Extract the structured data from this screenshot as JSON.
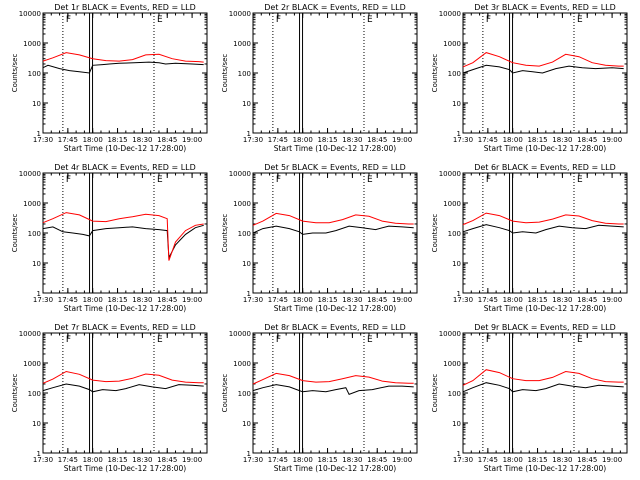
{
  "figure": {
    "xlabel": "Start Time (10-Dec-12 17:28:00)",
    "ylabel": "Counts/sec",
    "x_tick_labels": [
      "17:30",
      "17:45",
      "18:00",
      "18:15",
      "18:30",
      "18:45",
      "19:00"
    ],
    "y_tick_labels": [
      "1",
      "10",
      "100",
      "1000",
      "10000"
    ],
    "colors": {
      "events": "#000000",
      "lld": "#ff0000"
    }
  },
  "chart_data": [
    {
      "type": "line",
      "title": "Det 1r  BLACK = Events, RED = LLD",
      "markers": {
        "dotted": [
          "17:42",
          "18:37"
        ],
        "solid_double": [
          "17:59"
        ],
        "bracket_labels": [
          "F",
          "E"
        ]
      },
      "xlim": [
        "17:30",
        "19:09"
      ],
      "ylim": [
        1,
        10000
      ],
      "yscale": "log",
      "series": [
        {
          "name": "Events",
          "color": "#000000",
          "x": [
            "17:30",
            "17:33",
            "17:40",
            "17:46",
            "17:52",
            "17:58",
            "18:00",
            "18:06",
            "18:10",
            "18:16",
            "18:25",
            "18:34",
            "18:40",
            "18:44",
            "18:50",
            "19:00",
            "19:07"
          ],
          "y": [
            150,
            180,
            140,
            120,
            110,
            100,
            180,
            190,
            200,
            210,
            220,
            230,
            220,
            200,
            210,
            200,
            190
          ]
        },
        {
          "name": "LLD",
          "color": "#ff0000",
          "x": [
            "17:30",
            "17:36",
            "17:44",
            "17:52",
            "18:00",
            "18:08",
            "18:16",
            "18:24",
            "18:32",
            "18:40",
            "18:48",
            "18:56",
            "19:04",
            "19:07"
          ],
          "y": [
            250,
            320,
            480,
            400,
            300,
            260,
            250,
            280,
            400,
            420,
            300,
            250,
            240,
            230
          ]
        }
      ]
    },
    {
      "type": "line",
      "title": "Det 2r  BLACK = Events, RED = LLD",
      "markers": {
        "dotted": [
          "17:42",
          "18:37"
        ],
        "solid_double": [
          "17:59"
        ],
        "bracket_labels": [
          "F",
          "E"
        ]
      },
      "xlim": [
        "17:30",
        "19:09"
      ],
      "ylim": [
        1,
        10000
      ],
      "yscale": "log",
      "series": []
    },
    {
      "type": "line",
      "title": "Det 3r  BLACK = Events, RED = LLD",
      "markers": {
        "dotted": [
          "17:42",
          "18:37"
        ],
        "solid_double": [
          "17:59"
        ],
        "bracket_labels": [
          "F",
          "E"
        ]
      },
      "xlim": [
        "17:30",
        "19:09"
      ],
      "ylim": [
        1,
        10000
      ],
      "yscale": "log",
      "series": [
        {
          "name": "Events",
          "color": "#000000",
          "x": [
            "17:30",
            "17:36",
            "17:44",
            "17:52",
            "17:58",
            "18:00",
            "18:06",
            "18:12",
            "18:18",
            "18:26",
            "18:34",
            "18:42",
            "18:50",
            "19:00",
            "19:07"
          ],
          "y": [
            100,
            130,
            180,
            160,
            130,
            100,
            120,
            110,
            100,
            140,
            170,
            150,
            140,
            150,
            140
          ]
        },
        {
          "name": "LLD",
          "color": "#ff0000",
          "x": [
            "17:30",
            "17:36",
            "17:44",
            "17:52",
            "18:00",
            "18:08",
            "18:16",
            "18:24",
            "18:32",
            "18:40",
            "18:48",
            "18:56",
            "19:04",
            "19:07"
          ],
          "y": [
            160,
            220,
            480,
            350,
            220,
            180,
            170,
            230,
            420,
            350,
            220,
            180,
            170,
            170
          ]
        }
      ]
    },
    {
      "type": "line",
      "title": "Det 4r  BLACK = Events, RED = LLD",
      "markers": {
        "dotted": [
          "17:42",
          "18:37"
        ],
        "solid_double": [
          "17:59"
        ],
        "bracket_labels": [
          "F",
          "E"
        ]
      },
      "xlim": [
        "17:30",
        "19:09"
      ],
      "ylim": [
        1,
        10000
      ],
      "yscale": "log",
      "series": [
        {
          "name": "Events",
          "color": "#000000",
          "x": [
            "17:30",
            "17:36",
            "17:42",
            "17:48",
            "17:54",
            "17:58",
            "18:00",
            "18:08",
            "18:16",
            "18:24",
            "18:32",
            "18:40",
            "18:45",
            "18:46",
            "18:50",
            "18:56",
            "19:02",
            "19:07"
          ],
          "y": [
            140,
            160,
            110,
            100,
            90,
            80,
            120,
            140,
            150,
            160,
            140,
            130,
            120,
            15,
            40,
            90,
            150,
            180
          ]
        },
        {
          "name": "LLD",
          "color": "#ff0000",
          "x": [
            "17:30",
            "17:36",
            "17:44",
            "17:52",
            "18:00",
            "18:08",
            "18:16",
            "18:24",
            "18:32",
            "18:40",
            "18:45",
            "18:46",
            "18:50",
            "18:56",
            "19:02",
            "19:07"
          ],
          "y": [
            220,
            300,
            480,
            400,
            250,
            240,
            300,
            350,
            420,
            380,
            300,
            12,
            50,
            120,
            180,
            200
          ]
        }
      ]
    },
    {
      "type": "line",
      "title": "Det 5r  BLACK = Events, RED = LLD",
      "markers": {
        "dotted": [
          "17:42",
          "18:37"
        ],
        "solid_double": [
          "17:59"
        ],
        "bracket_labels": [
          "F",
          "E"
        ]
      },
      "xlim": [
        "17:30",
        "19:09"
      ],
      "ylim": [
        1,
        10000
      ],
      "yscale": "log",
      "series": [
        {
          "name": "Events",
          "color": "#000000",
          "x": [
            "17:30",
            "17:36",
            "17:44",
            "17:52",
            "17:58",
            "18:00",
            "18:06",
            "18:14",
            "18:20",
            "18:28",
            "18:36",
            "18:44",
            "18:52",
            "19:00",
            "19:07"
          ],
          "y": [
            100,
            140,
            170,
            140,
            110,
            90,
            100,
            100,
            120,
            170,
            150,
            130,
            170,
            160,
            150
          ]
        },
        {
          "name": "LLD",
          "color": "#ff0000",
          "x": [
            "17:30",
            "17:36",
            "17:44",
            "17:52",
            "18:00",
            "18:08",
            "18:16",
            "18:24",
            "18:32",
            "18:40",
            "18:48",
            "18:56",
            "19:04",
            "19:07"
          ],
          "y": [
            180,
            250,
            450,
            380,
            250,
            220,
            220,
            280,
            400,
            360,
            250,
            210,
            200,
            200
          ]
        }
      ]
    },
    {
      "type": "line",
      "title": "Det 6r  BLACK = Events, RED = LLD",
      "markers": {
        "dotted": [
          "17:42",
          "18:37"
        ],
        "solid_double": [
          "17:59"
        ],
        "bracket_labels": [
          "F",
          "E"
        ]
      },
      "xlim": [
        "17:30",
        "19:09"
      ],
      "ylim": [
        1,
        10000
      ],
      "yscale": "log",
      "series": [
        {
          "name": "Events",
          "color": "#000000",
          "x": [
            "17:30",
            "17:36",
            "17:44",
            "17:52",
            "17:58",
            "18:00",
            "18:06",
            "18:14",
            "18:20",
            "18:28",
            "18:36",
            "18:44",
            "18:52",
            "19:00",
            "19:07"
          ],
          "y": [
            110,
            140,
            190,
            150,
            120,
            100,
            110,
            100,
            130,
            170,
            150,
            140,
            180,
            170,
            160
          ]
        },
        {
          "name": "LLD",
          "color": "#ff0000",
          "x": [
            "17:30",
            "17:36",
            "17:44",
            "17:52",
            "18:00",
            "18:08",
            "18:16",
            "18:24",
            "18:32",
            "18:40",
            "18:48",
            "18:56",
            "19:04",
            "19:07"
          ],
          "y": [
            190,
            260,
            460,
            380,
            250,
            220,
            230,
            290,
            400,
            370,
            260,
            210,
            200,
            200
          ]
        }
      ]
    },
    {
      "type": "line",
      "title": "Det 7r  BLACK = Events, RED = LLD",
      "markers": {
        "dotted": [
          "17:42",
          "18:37"
        ],
        "solid_double": [
          "17:59"
        ],
        "bracket_labels": [
          "F",
          "E"
        ]
      },
      "xlim": [
        "17:30",
        "19:09"
      ],
      "ylim": [
        1,
        10000
      ],
      "yscale": "log",
      "series": [
        {
          "name": "Events",
          "color": "#000000",
          "x": [
            "17:30",
            "17:36",
            "17:44",
            "17:52",
            "17:58",
            "18:00",
            "18:06",
            "18:14",
            "18:20",
            "18:28",
            "18:36",
            "18:44",
            "18:52",
            "19:00",
            "19:07"
          ],
          "y": [
            120,
            150,
            200,
            170,
            130,
            110,
            130,
            120,
            140,
            190,
            160,
            140,
            190,
            180,
            170
          ]
        },
        {
          "name": "LLD",
          "color": "#ff0000",
          "x": [
            "17:30",
            "17:36",
            "17:44",
            "17:52",
            "18:00",
            "18:08",
            "18:16",
            "18:24",
            "18:32",
            "18:40",
            "18:48",
            "18:56",
            "19:04",
            "19:07"
          ],
          "y": [
            210,
            290,
            520,
            420,
            270,
            240,
            250,
            310,
            430,
            390,
            270,
            230,
            220,
            220
          ]
        }
      ]
    },
    {
      "type": "line",
      "title": "Det 8r  BLACK = Events, RED = LLD",
      "markers": {
        "dotted": [
          "17:42",
          "18:37"
        ],
        "solid_double": [
          "17:59"
        ],
        "bracket_labels": [
          "F",
          "E"
        ]
      },
      "xlim": [
        "17:30",
        "19:09"
      ],
      "ylim": [
        1,
        10000
      ],
      "yscale": "log",
      "series": [
        {
          "name": "Events",
          "color": "#000000",
          "x": [
            "17:30",
            "17:36",
            "17:44",
            "17:52",
            "17:58",
            "18:00",
            "18:06",
            "18:14",
            "18:20",
            "18:26",
            "18:28",
            "18:34",
            "18:42",
            "18:52",
            "19:00",
            "19:07"
          ],
          "y": [
            120,
            150,
            190,
            160,
            120,
            110,
            120,
            110,
            130,
            150,
            90,
            120,
            130,
            170,
            170,
            160
          ]
        },
        {
          "name": "LLD",
          "color": "#ff0000",
          "x": [
            "17:30",
            "17:36",
            "17:44",
            "17:52",
            "18:00",
            "18:08",
            "18:16",
            "18:24",
            "18:32",
            "18:40",
            "18:48",
            "18:56",
            "19:04",
            "19:07"
          ],
          "y": [
            200,
            280,
            450,
            380,
            260,
            230,
            240,
            300,
            380,
            340,
            250,
            220,
            210,
            210
          ]
        }
      ]
    },
    {
      "type": "line",
      "title": "Det 9r  BLACK = Events, RED = LLD",
      "markers": {
        "dotted": [
          "17:42",
          "18:37"
        ],
        "solid_double": [
          "17:59"
        ],
        "bracket_labels": [
          "F",
          "E"
        ]
      },
      "xlim": [
        "17:30",
        "19:09"
      ],
      "ylim": [
        1,
        10000
      ],
      "yscale": "log",
      "series": [
        {
          "name": "Events",
          "color": "#000000",
          "x": [
            "17:30",
            "17:36",
            "17:44",
            "17:52",
            "17:58",
            "18:00",
            "18:06",
            "18:14",
            "18:20",
            "18:28",
            "18:36",
            "18:44",
            "18:52",
            "19:00",
            "19:07"
          ],
          "y": [
            110,
            150,
            220,
            180,
            140,
            110,
            130,
            120,
            140,
            200,
            170,
            150,
            180,
            170,
            160
          ]
        },
        {
          "name": "LLD",
          "color": "#ff0000",
          "x": [
            "17:30",
            "17:36",
            "17:44",
            "17:52",
            "18:00",
            "18:08",
            "18:16",
            "18:24",
            "18:32",
            "18:40",
            "18:48",
            "18:56",
            "19:04",
            "19:07"
          ],
          "y": [
            180,
            260,
            600,
            480,
            300,
            260,
            260,
            330,
            520,
            450,
            300,
            240,
            230,
            230
          ]
        }
      ]
    }
  ]
}
